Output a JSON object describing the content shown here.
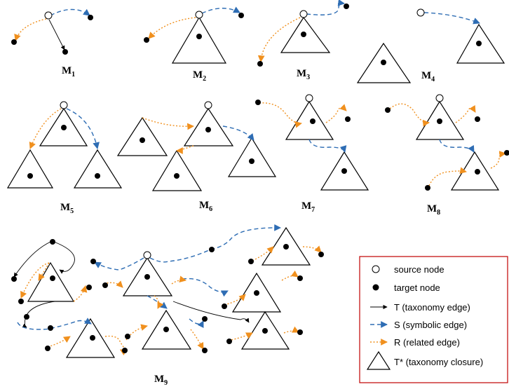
{
  "motifs": [
    {
      "id": "M1",
      "base": "M",
      "sub": "1"
    },
    {
      "id": "M2",
      "base": "M",
      "sub": "2"
    },
    {
      "id": "M3",
      "base": "M",
      "sub": "3"
    },
    {
      "id": "M4",
      "base": "M",
      "sub": "4"
    },
    {
      "id": "M5",
      "base": "M",
      "sub": "5"
    },
    {
      "id": "M6",
      "base": "M",
      "sub": "6"
    },
    {
      "id": "M7",
      "base": "M",
      "sub": "7"
    },
    {
      "id": "M8",
      "base": "M",
      "sub": "8"
    },
    {
      "id": "M9",
      "base": "M",
      "sub": "9"
    }
  ],
  "legend": {
    "source_node": "source node",
    "target_node": "target node",
    "taxonomy_edge": "T (taxonomy edge)",
    "symbolic_edge": "S (symbolic edge)",
    "related_edge": "R (related edge)",
    "taxonomy_closure": "T* (taxonomy closure)"
  },
  "colors": {
    "taxonomy_edge": "#000000",
    "symbolic_edge": "#2E6DB4",
    "related_edge": "#F0901E",
    "legend_border": "#C00000"
  }
}
